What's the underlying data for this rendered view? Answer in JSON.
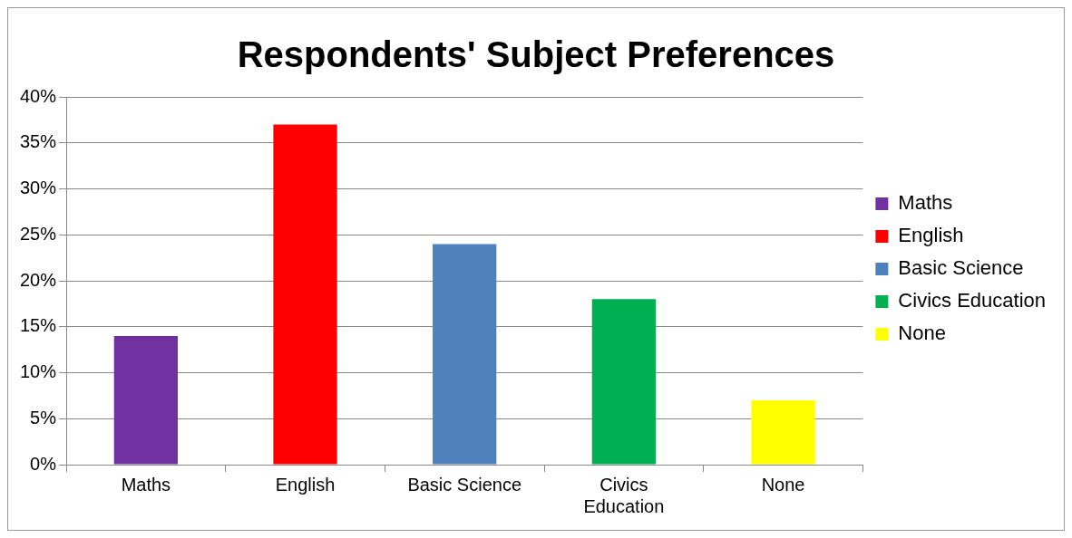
{
  "chart_data": {
    "type": "bar",
    "title": "Respondents' Subject Preferences",
    "categories": [
      "Maths",
      "English",
      "Basic Science",
      "Civics Education",
      "None"
    ],
    "series": [
      {
        "name": "Maths",
        "color": "#7030a0",
        "values": [
          14,
          null,
          null,
          null,
          null
        ]
      },
      {
        "name": "English",
        "color": "#ff0000",
        "values": [
          null,
          37,
          null,
          null,
          null
        ]
      },
      {
        "name": "Basic Science",
        "color": "#4f81bd",
        "values": [
          null,
          null,
          24,
          null,
          null
        ]
      },
      {
        "name": "Civics Education",
        "color": "#00b050",
        "values": [
          null,
          null,
          null,
          18,
          null
        ]
      },
      {
        "name": "None",
        "color": "#ffff00",
        "values": [
          null,
          null,
          null,
          null,
          7
        ]
      }
    ],
    "ylim": [
      0,
      40
    ],
    "yticks": [
      {
        "value": 0,
        "label": "0%"
      },
      {
        "value": 5,
        "label": "5%"
      },
      {
        "value": 10,
        "label": "10%"
      },
      {
        "value": 15,
        "label": "15%"
      },
      {
        "value": 20,
        "label": "20%"
      },
      {
        "value": 25,
        "label": "25%"
      },
      {
        "value": 30,
        "label": "30%"
      },
      {
        "value": 35,
        "label": "35%"
      },
      {
        "value": 40,
        "label": "40%"
      }
    ],
    "grid": "y",
    "legend": "right"
  }
}
